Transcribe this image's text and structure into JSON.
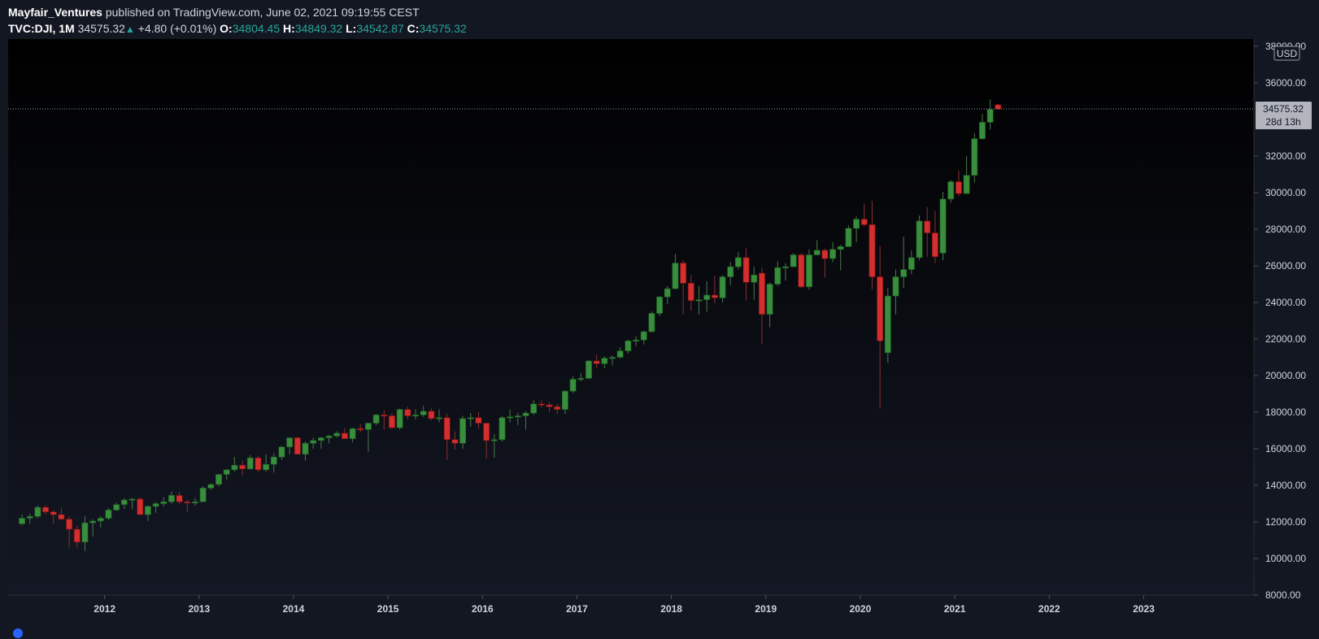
{
  "header": {
    "author": "Mayfair_Ventures",
    "published_text": "published on TradingView.com, June 02, 2021 09:19:55 CEST",
    "symbol": "TVC:DJI, 1M",
    "last": "34575.32",
    "change_arrow": "▲",
    "change": "+4.80 (+0.01%)",
    "open_label": "O:",
    "open": "34804.45",
    "high_label": "H:",
    "high": "34849.32",
    "low_label": "L:",
    "low": "34542.87",
    "close_label": "C:",
    "close": "34575.32"
  },
  "price_axis": {
    "currency": "USD",
    "ticks": [
      "38000.00",
      "36000.00",
      "32000.00",
      "30000.00",
      "28000.00",
      "26000.00",
      "24000.00",
      "22000.00",
      "20000.00",
      "18000.00",
      "16000.00",
      "14000.00",
      "12000.00",
      "10000.00",
      "8000.00"
    ],
    "last_price_label": "34575.32",
    "countdown_label": "28d 13h"
  },
  "colors": {
    "up": "#388e3c",
    "down": "#d32f2f",
    "background": "#131722",
    "axis_text": "#d1d4dc",
    "accent": "#26a69a"
  },
  "chart_data": {
    "type": "candlestick",
    "symbol": "TVC:DJI",
    "interval": "1M",
    "ylim": [
      8000,
      38400
    ],
    "xlim": [
      "2011-01",
      "2023-12"
    ],
    "x_ticks": [
      "2012",
      "2013",
      "2014",
      "2015",
      "2016",
      "2017",
      "2018",
      "2019",
      "2020",
      "2021",
      "2022",
      "2023"
    ],
    "last_price": 34575.32,
    "candles": [
      {
        "date": "2011-02",
        "o": 11900,
        "h": 12400,
        "l": 11800,
        "c": 12200
      },
      {
        "date": "2011-03",
        "o": 12200,
        "h": 12450,
        "l": 11900,
        "c": 12300
      },
      {
        "date": "2011-04",
        "o": 12300,
        "h": 12900,
        "l": 12200,
        "c": 12800
      },
      {
        "date": "2011-05",
        "o": 12800,
        "h": 12900,
        "l": 12400,
        "c": 12550
      },
      {
        "date": "2011-06",
        "o": 12550,
        "h": 12650,
        "l": 11900,
        "c": 12400
      },
      {
        "date": "2011-07",
        "o": 12400,
        "h": 12750,
        "l": 12100,
        "c": 12150
      },
      {
        "date": "2011-08",
        "o": 12150,
        "h": 12300,
        "l": 10600,
        "c": 11600
      },
      {
        "date": "2011-09",
        "o": 11600,
        "h": 11800,
        "l": 10600,
        "c": 10900
      },
      {
        "date": "2011-10",
        "o": 10900,
        "h": 12300,
        "l": 10400,
        "c": 11950
      },
      {
        "date": "2011-11",
        "o": 11950,
        "h": 12150,
        "l": 11200,
        "c": 12050
      },
      {
        "date": "2011-12",
        "o": 12050,
        "h": 12300,
        "l": 11700,
        "c": 12200
      },
      {
        "date": "2012-01",
        "o": 12200,
        "h": 12750,
        "l": 12100,
        "c": 12650
      },
      {
        "date": "2012-02",
        "o": 12650,
        "h": 13050,
        "l": 12600,
        "c": 12950
      },
      {
        "date": "2012-03",
        "o": 12950,
        "h": 13300,
        "l": 12700,
        "c": 13200
      },
      {
        "date": "2012-04",
        "o": 13200,
        "h": 13300,
        "l": 12700,
        "c": 13250
      },
      {
        "date": "2012-05",
        "o": 13250,
        "h": 13350,
        "l": 12400,
        "c": 12400
      },
      {
        "date": "2012-06",
        "o": 12400,
        "h": 12900,
        "l": 12050,
        "c": 12850
      },
      {
        "date": "2012-07",
        "o": 12850,
        "h": 13100,
        "l": 12500,
        "c": 13000
      },
      {
        "date": "2012-08",
        "o": 13000,
        "h": 13350,
        "l": 12850,
        "c": 13100
      },
      {
        "date": "2012-09",
        "o": 13100,
        "h": 13650,
        "l": 13000,
        "c": 13450
      },
      {
        "date": "2012-10",
        "o": 13450,
        "h": 13650,
        "l": 13000,
        "c": 13100
      },
      {
        "date": "2012-11",
        "o": 13100,
        "h": 13200,
        "l": 12550,
        "c": 13050
      },
      {
        "date": "2012-12",
        "o": 13050,
        "h": 13300,
        "l": 12900,
        "c": 13100
      },
      {
        "date": "2013-01",
        "o": 13100,
        "h": 13950,
        "l": 13100,
        "c": 13850
      },
      {
        "date": "2013-02",
        "o": 13850,
        "h": 14100,
        "l": 13750,
        "c": 14050
      },
      {
        "date": "2013-03",
        "o": 14050,
        "h": 14600,
        "l": 13950,
        "c": 14600
      },
      {
        "date": "2013-04",
        "o": 14600,
        "h": 14900,
        "l": 14300,
        "c": 14850
      },
      {
        "date": "2013-05",
        "o": 14850,
        "h": 15550,
        "l": 14750,
        "c": 15100
      },
      {
        "date": "2013-06",
        "o": 15100,
        "h": 15350,
        "l": 14550,
        "c": 14900
      },
      {
        "date": "2013-07",
        "o": 14900,
        "h": 15650,
        "l": 14850,
        "c": 15500
      },
      {
        "date": "2013-08",
        "o": 15500,
        "h": 15600,
        "l": 14750,
        "c": 14850
      },
      {
        "date": "2013-09",
        "o": 14850,
        "h": 15700,
        "l": 14750,
        "c": 15150
      },
      {
        "date": "2013-10",
        "o": 15150,
        "h": 15750,
        "l": 14700,
        "c": 15550
      },
      {
        "date": "2013-11",
        "o": 15550,
        "h": 16150,
        "l": 15400,
        "c": 16100
      },
      {
        "date": "2013-12",
        "o": 16100,
        "h": 16600,
        "l": 15700,
        "c": 16600
      },
      {
        "date": "2014-01",
        "o": 16600,
        "h": 16650,
        "l": 15700,
        "c": 15700
      },
      {
        "date": "2014-02",
        "o": 15700,
        "h": 16400,
        "l": 15350,
        "c": 16300
      },
      {
        "date": "2014-03",
        "o": 16300,
        "h": 16600,
        "l": 16000,
        "c": 16450
      },
      {
        "date": "2014-04",
        "o": 16450,
        "h": 16650,
        "l": 16000,
        "c": 16600
      },
      {
        "date": "2014-05",
        "o": 16600,
        "h": 16750,
        "l": 16300,
        "c": 16700
      },
      {
        "date": "2014-06",
        "o": 16700,
        "h": 16950,
        "l": 16600,
        "c": 16850
      },
      {
        "date": "2014-07",
        "o": 16850,
        "h": 17150,
        "l": 16550,
        "c": 16550
      },
      {
        "date": "2014-08",
        "o": 16550,
        "h": 17150,
        "l": 16350,
        "c": 17100
      },
      {
        "date": "2014-09",
        "o": 17100,
        "h": 17350,
        "l": 16900,
        "c": 17050
      },
      {
        "date": "2014-10",
        "o": 17050,
        "h": 17400,
        "l": 15850,
        "c": 17400
      },
      {
        "date": "2014-11",
        "o": 17400,
        "h": 17900,
        "l": 17300,
        "c": 17850
      },
      {
        "date": "2014-12",
        "o": 17850,
        "h": 18100,
        "l": 17050,
        "c": 17800
      },
      {
        "date": "2015-01",
        "o": 17800,
        "h": 17950,
        "l": 17100,
        "c": 17150
      },
      {
        "date": "2015-02",
        "o": 17150,
        "h": 18200,
        "l": 17050,
        "c": 18150
      },
      {
        "date": "2015-03",
        "o": 18150,
        "h": 18300,
        "l": 17600,
        "c": 17800
      },
      {
        "date": "2015-04",
        "o": 17800,
        "h": 18150,
        "l": 17600,
        "c": 17850
      },
      {
        "date": "2015-05",
        "o": 17850,
        "h": 18350,
        "l": 17750,
        "c": 18050
      },
      {
        "date": "2015-06",
        "o": 18050,
        "h": 18200,
        "l": 17550,
        "c": 17650
      },
      {
        "date": "2015-07",
        "o": 17650,
        "h": 18150,
        "l": 17450,
        "c": 17700
      },
      {
        "date": "2015-08",
        "o": 17700,
        "h": 17900,
        "l": 15400,
        "c": 16500
      },
      {
        "date": "2015-09",
        "o": 16500,
        "h": 16950,
        "l": 15950,
        "c": 16300
      },
      {
        "date": "2015-10",
        "o": 16300,
        "h": 17800,
        "l": 16000,
        "c": 17650
      },
      {
        "date": "2015-11",
        "o": 17650,
        "h": 17950,
        "l": 17200,
        "c": 17700
      },
      {
        "date": "2015-12",
        "o": 17700,
        "h": 18000,
        "l": 17100,
        "c": 17400
      },
      {
        "date": "2016-01",
        "o": 17400,
        "h": 17400,
        "l": 15450,
        "c": 16450
      },
      {
        "date": "2016-02",
        "o": 16450,
        "h": 16800,
        "l": 15500,
        "c": 16500
      },
      {
        "date": "2016-03",
        "o": 16500,
        "h": 17800,
        "l": 16400,
        "c": 17700
      },
      {
        "date": "2016-04",
        "o": 17700,
        "h": 18150,
        "l": 17450,
        "c": 17750
      },
      {
        "date": "2016-05",
        "o": 17750,
        "h": 17950,
        "l": 17300,
        "c": 17800
      },
      {
        "date": "2016-06",
        "o": 17800,
        "h": 18050,
        "l": 17050,
        "c": 17950
      },
      {
        "date": "2016-07",
        "o": 17950,
        "h": 18650,
        "l": 17850,
        "c": 18450
      },
      {
        "date": "2016-08",
        "o": 18450,
        "h": 18650,
        "l": 18250,
        "c": 18400
      },
      {
        "date": "2016-09",
        "o": 18400,
        "h": 18550,
        "l": 18000,
        "c": 18300
      },
      {
        "date": "2016-10",
        "o": 18300,
        "h": 18450,
        "l": 17900,
        "c": 18150
      },
      {
        "date": "2016-11",
        "o": 18150,
        "h": 19200,
        "l": 17900,
        "c": 19150
      },
      {
        "date": "2016-12",
        "o": 19150,
        "h": 19950,
        "l": 19050,
        "c": 19800
      },
      {
        "date": "2017-01",
        "o": 19800,
        "h": 20150,
        "l": 19700,
        "c": 19850
      },
      {
        "date": "2017-02",
        "o": 19850,
        "h": 20850,
        "l": 19800,
        "c": 20800
      },
      {
        "date": "2017-03",
        "o": 20800,
        "h": 21150,
        "l": 20400,
        "c": 20650
      },
      {
        "date": "2017-04",
        "o": 20650,
        "h": 21050,
        "l": 20400,
        "c": 20950
      },
      {
        "date": "2017-05",
        "o": 20950,
        "h": 21100,
        "l": 20550,
        "c": 21000
      },
      {
        "date": "2017-06",
        "o": 21000,
        "h": 21550,
        "l": 20950,
        "c": 21350
      },
      {
        "date": "2017-07",
        "o": 21350,
        "h": 21950,
        "l": 21200,
        "c": 21900
      },
      {
        "date": "2017-08",
        "o": 21900,
        "h": 22150,
        "l": 21600,
        "c": 21950
      },
      {
        "date": "2017-09",
        "o": 21950,
        "h": 22450,
        "l": 21700,
        "c": 22400
      },
      {
        "date": "2017-10",
        "o": 22400,
        "h": 23500,
        "l": 22350,
        "c": 23400
      },
      {
        "date": "2017-11",
        "o": 23400,
        "h": 24350,
        "l": 23250,
        "c": 24300
      },
      {
        "date": "2017-12",
        "o": 24300,
        "h": 24900,
        "l": 23900,
        "c": 24750
      },
      {
        "date": "2018-01",
        "o": 24750,
        "h": 26650,
        "l": 24750,
        "c": 26150
      },
      {
        "date": "2018-02",
        "o": 26150,
        "h": 26300,
        "l": 23350,
        "c": 25050
      },
      {
        "date": "2018-03",
        "o": 25050,
        "h": 25500,
        "l": 23550,
        "c": 24100
      },
      {
        "date": "2018-04",
        "o": 24100,
        "h": 24900,
        "l": 23350,
        "c": 24150
      },
      {
        "date": "2018-05",
        "o": 24150,
        "h": 25150,
        "l": 23500,
        "c": 24400
      },
      {
        "date": "2018-06",
        "o": 24400,
        "h": 25450,
        "l": 23950,
        "c": 24250
      },
      {
        "date": "2018-07",
        "o": 24250,
        "h": 25500,
        "l": 24000,
        "c": 25400
      },
      {
        "date": "2018-08",
        "o": 25400,
        "h": 26200,
        "l": 24950,
        "c": 25950
      },
      {
        "date": "2018-09",
        "o": 25950,
        "h": 26750,
        "l": 25800,
        "c": 26450
      },
      {
        "date": "2018-10",
        "o": 26450,
        "h": 26950,
        "l": 24100,
        "c": 25100
      },
      {
        "date": "2018-11",
        "o": 25100,
        "h": 25950,
        "l": 24150,
        "c": 25500
      },
      {
        "date": "2018-12",
        "o": 25600,
        "h": 25900,
        "l": 21700,
        "c": 23350
      },
      {
        "date": "2019-01",
        "o": 23350,
        "h": 25100,
        "l": 22650,
        "c": 25000
      },
      {
        "date": "2019-02",
        "o": 25000,
        "h": 26250,
        "l": 24900,
        "c": 25900
      },
      {
        "date": "2019-03",
        "o": 25900,
        "h": 26150,
        "l": 25200,
        "c": 25950
      },
      {
        "date": "2019-04",
        "o": 25950,
        "h": 26700,
        "l": 25950,
        "c": 26600
      },
      {
        "date": "2019-05",
        "o": 26600,
        "h": 26700,
        "l": 24800,
        "c": 24850
      },
      {
        "date": "2019-06",
        "o": 24850,
        "h": 26900,
        "l": 24700,
        "c": 26600
      },
      {
        "date": "2019-07",
        "o": 26600,
        "h": 27400,
        "l": 26600,
        "c": 26850
      },
      {
        "date": "2019-08",
        "o": 26850,
        "h": 26950,
        "l": 25350,
        "c": 26400
      },
      {
        "date": "2019-09",
        "o": 26400,
        "h": 27300,
        "l": 26200,
        "c": 26900
      },
      {
        "date": "2019-10",
        "o": 26900,
        "h": 27150,
        "l": 25750,
        "c": 27050
      },
      {
        "date": "2019-11",
        "o": 27050,
        "h": 28200,
        "l": 27050,
        "c": 28050
      },
      {
        "date": "2019-12",
        "o": 28050,
        "h": 28700,
        "l": 27300,
        "c": 28550
      },
      {
        "date": "2020-01",
        "o": 28550,
        "h": 29400,
        "l": 28150,
        "c": 28250
      },
      {
        "date": "2020-02",
        "o": 28250,
        "h": 29550,
        "l": 24700,
        "c": 25400
      },
      {
        "date": "2020-03",
        "o": 25400,
        "h": 27100,
        "l": 18200,
        "c": 21900
      },
      {
        "date": "2020-04",
        "o": 21250,
        "h": 24800,
        "l": 20700,
        "c": 24350
      },
      {
        "date": "2020-05",
        "o": 24350,
        "h": 25800,
        "l": 23350,
        "c": 25400
      },
      {
        "date": "2020-06",
        "o": 25400,
        "h": 27600,
        "l": 24800,
        "c": 25800
      },
      {
        "date": "2020-07",
        "o": 25800,
        "h": 26850,
        "l": 25550,
        "c": 26450
      },
      {
        "date": "2020-08",
        "o": 26450,
        "h": 28750,
        "l": 26300,
        "c": 28450
      },
      {
        "date": "2020-09",
        "o": 28450,
        "h": 29200,
        "l": 26500,
        "c": 27800
      },
      {
        "date": "2020-10",
        "o": 27800,
        "h": 29000,
        "l": 26150,
        "c": 26500
      },
      {
        "date": "2020-11",
        "o": 26700,
        "h": 30050,
        "l": 26300,
        "c": 29650
      },
      {
        "date": "2020-12",
        "o": 29650,
        "h": 30700,
        "l": 29450,
        "c": 30600
      },
      {
        "date": "2021-01",
        "o": 30600,
        "h": 31200,
        "l": 29800,
        "c": 29950
      },
      {
        "date": "2021-02",
        "o": 29950,
        "h": 32000,
        "l": 29950,
        "c": 30950
      },
      {
        "date": "2021-03",
        "o": 30950,
        "h": 33250,
        "l": 30550,
        "c": 32950
      },
      {
        "date": "2021-04",
        "o": 32950,
        "h": 34300,
        "l": 32900,
        "c": 33850
      },
      {
        "date": "2021-05",
        "o": 33850,
        "h": 35100,
        "l": 33450,
        "c": 34550
      },
      {
        "date": "2021-06",
        "o": 34804.45,
        "h": 34849.32,
        "l": 34542.87,
        "c": 34575.32
      }
    ]
  }
}
